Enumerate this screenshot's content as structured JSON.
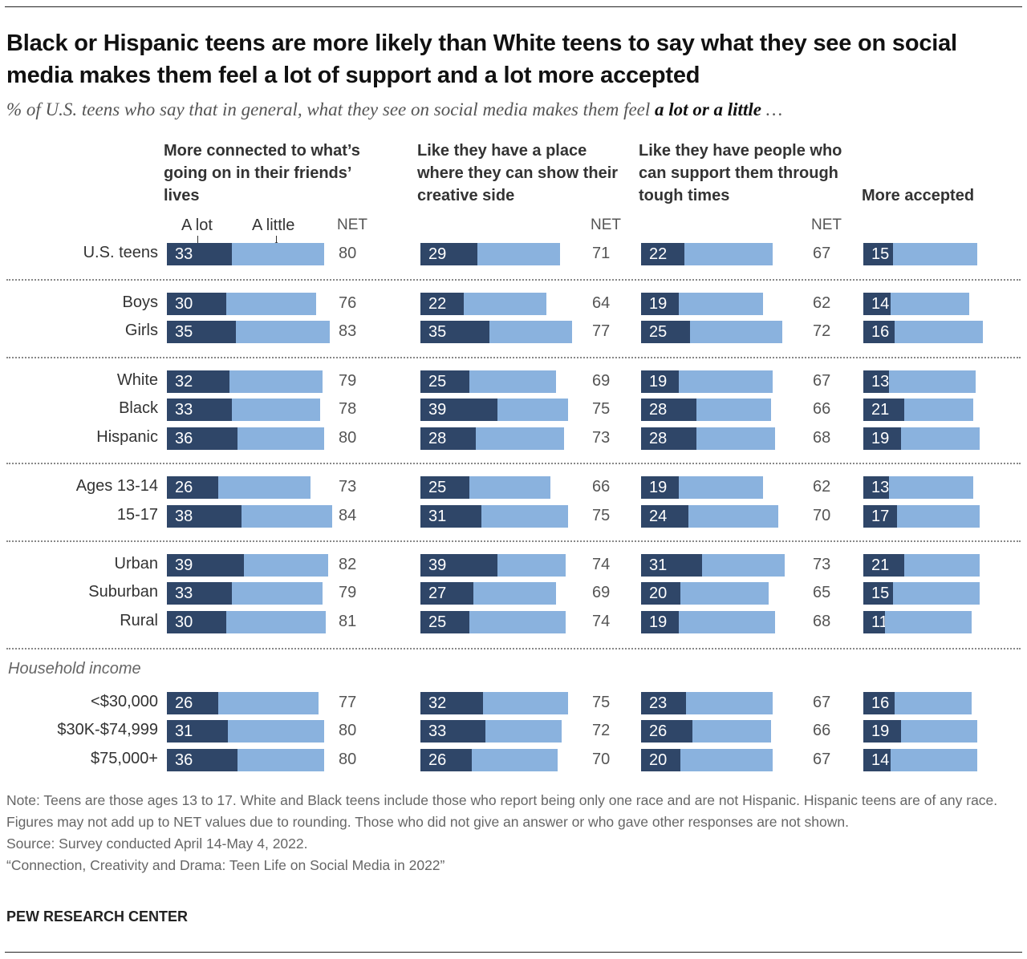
{
  "chart_data": {
    "type": "bar",
    "subtype": "stacked-horizontal-small-multiples",
    "title": "Black or Hispanic teens are more likely than White teens to say what they see on social media makes them feel a lot of support and a lot more accepted",
    "subtitle_prefix": "% of U.S. teens who say that in general, what they see on social media makes them feel ",
    "subtitle_bold": "a lot or a little",
    "subtitle_suffix": " …",
    "legend": {
      "a_lot": "A lot",
      "a_little": "A little",
      "net": "NET"
    },
    "colors": {
      "a_lot": "#2f4668",
      "a_little": "#8ab2de"
    },
    "columns": [
      "More connected to what’s going on in their friends’ lives",
      "Like they have a place where they can show their creative side",
      "Like they have people who can support them through tough times",
      "More accepted"
    ],
    "groups": [
      {
        "heading": "",
        "rows": [
          {
            "label": "U.S. teens",
            "a_lot": [
              33,
              29,
              22,
              15
            ],
            "net": [
              80,
              71,
              67,
              58
            ]
          }
        ]
      },
      {
        "heading": "",
        "rows": [
          {
            "label": "Boys",
            "a_lot": [
              30,
              22,
              19,
              14
            ],
            "net": [
              76,
              64,
              62,
              54
            ]
          },
          {
            "label": "Girls",
            "a_lot": [
              35,
              35,
              25,
              16
            ],
            "net": [
              83,
              77,
              72,
              61
            ]
          }
        ]
      },
      {
        "heading": "",
        "rows": [
          {
            "label": "White",
            "a_lot": [
              32,
              25,
              19,
              13
            ],
            "net": [
              79,
              69,
              67,
              57
            ]
          },
          {
            "label": "Black",
            "a_lot": [
              33,
              39,
              28,
              21
            ],
            "net": [
              78,
              75,
              66,
              56
            ]
          },
          {
            "label": "Hispanic",
            "a_lot": [
              36,
              28,
              28,
              19
            ],
            "net": [
              80,
              73,
              68,
              59
            ]
          }
        ]
      },
      {
        "heading": "",
        "rows": [
          {
            "label": "Ages 13-14",
            "a_lot": [
              26,
              25,
              19,
              13
            ],
            "net": [
              73,
              66,
              62,
              56
            ]
          },
          {
            "label": "15-17",
            "a_lot": [
              38,
              31,
              24,
              17
            ],
            "net": [
              84,
              75,
              70,
              59
            ]
          }
        ]
      },
      {
        "heading": "",
        "rows": [
          {
            "label": "Urban",
            "a_lot": [
              39,
              39,
              31,
              21
            ],
            "net": [
              82,
              74,
              73,
              59
            ]
          },
          {
            "label": "Suburban",
            "a_lot": [
              33,
              27,
              20,
              15
            ],
            "net": [
              79,
              69,
              65,
              59
            ]
          },
          {
            "label": "Rural",
            "a_lot": [
              30,
              25,
              19,
              11
            ],
            "net": [
              81,
              74,
              68,
              55
            ]
          }
        ]
      },
      {
        "heading": "Household income",
        "rows": [
          {
            "label": "<$30,000",
            "a_lot": [
              26,
              32,
              23,
              16
            ],
            "net": [
              77,
              75,
              67,
              55
            ]
          },
          {
            "label": "$30K-$74,999",
            "a_lot": [
              31,
              33,
              26,
              19
            ],
            "net": [
              80,
              72,
              66,
              58
            ]
          },
          {
            "label": "$75,000+",
            "a_lot": [
              36,
              26,
              20,
              14
            ],
            "net": [
              80,
              70,
              67,
              58
            ]
          }
        ]
      }
    ]
  },
  "footer": {
    "note": "Note: Teens are those ages 13 to 17. White and Black teens include those who report being only one race and are not Hispanic. Hispanic teens are of any race. Figures may not add up to NET values due to rounding. Those who did not give an answer or who gave other responses are not shown.",
    "source": "Source: Survey conducted April 14-May 4, 2022.",
    "report": "“Connection, Creativity and Drama: Teen Life on Social Media in 2022”",
    "brand": "PEW RESEARCH CENTER"
  }
}
